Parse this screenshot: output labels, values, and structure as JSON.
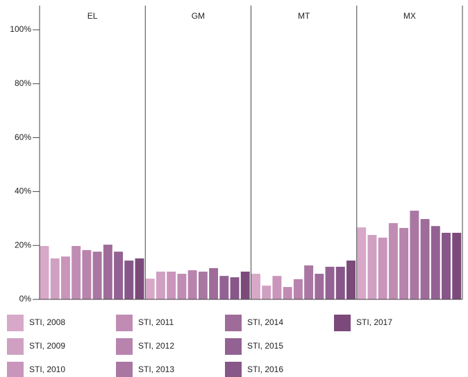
{
  "chart_data": {
    "type": "bar",
    "categories": [
      "EL",
      "GM",
      "MT",
      "MX"
    ],
    "series": [
      {
        "name": "STI, 2008",
        "color": "#d8a8c8",
        "values": [
          19.8,
          7.7,
          9.5,
          26.7
        ]
      },
      {
        "name": "STI, 2009",
        "color": "#d0a0c2",
        "values": [
          15.2,
          10.3,
          5.1,
          23.9
        ]
      },
      {
        "name": "STI, 2010",
        "color": "#c995bb",
        "values": [
          15.9,
          10.3,
          8.7,
          22.9
        ]
      },
      {
        "name": "STI, 2011",
        "color": "#c08cb4",
        "values": [
          19.8,
          9.5,
          4.6,
          28.3
        ]
      },
      {
        "name": "STI, 2012",
        "color": "#b883ad",
        "values": [
          18.3,
          10.8,
          7.5,
          26.5
        ]
      },
      {
        "name": "STI, 2013",
        "color": "#aa77a3",
        "values": [
          17.7,
          10.3,
          12.6,
          32.9
        ]
      },
      {
        "name": "STI, 2014",
        "color": "#9f6c9a",
        "values": [
          20.3,
          11.6,
          9.5,
          29.8
        ]
      },
      {
        "name": "STI, 2015",
        "color": "#936293",
        "values": [
          17.7,
          8.7,
          12.1,
          27.2
        ]
      },
      {
        "name": "STI, 2016",
        "color": "#875789",
        "values": [
          14.4,
          8.2,
          12.1,
          24.7
        ]
      },
      {
        "name": "STI, 2017",
        "color": "#7b4a7b",
        "values": [
          15.2,
          10.3,
          14.4,
          24.7
        ]
      }
    ],
    "ylim": [
      0,
      100
    ],
    "yticks": [
      {
        "value": 0,
        "label": "0%"
      },
      {
        "value": 20,
        "label": "20%"
      },
      {
        "value": 40,
        "label": "40%"
      },
      {
        "value": 60,
        "label": "60%"
      },
      {
        "value": 80,
        "label": "80%"
      },
      {
        "value": 100,
        "label": "100%"
      }
    ]
  }
}
